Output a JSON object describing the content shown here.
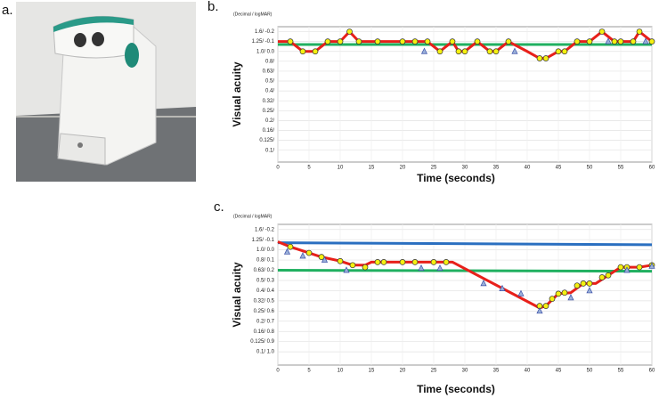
{
  "photo": {
    "label": "a."
  },
  "chart_data": [
    {
      "type": "line",
      "panel": "b.",
      "axis_note": "(Decimal / logMAR)",
      "ylabel": "Visual acuity",
      "xlabel": "Time (seconds)",
      "xlim": [
        0,
        60
      ],
      "xticks": [
        0,
        5,
        10,
        15,
        20,
        25,
        30,
        35,
        40,
        45,
        50,
        55,
        60
      ],
      "ylim": [
        1.12,
        -0.25
      ],
      "yticks": [
        {
          "value": -0.2,
          "label": "1.6/ -0.2"
        },
        {
          "value": -0.1,
          "label": "1.25/ -0.1"
        },
        {
          "value": 0.0,
          "label": "1.0/ 0.0"
        },
        {
          "value": 0.1,
          "label": "0.8/"
        },
        {
          "value": 0.2,
          "label": "0.63/"
        },
        {
          "value": 0.3,
          "label": "0.5/"
        },
        {
          "value": 0.4,
          "label": "0.4/"
        },
        {
          "value": 0.5,
          "label": "0.32/"
        },
        {
          "value": 0.6,
          "label": "0.25/"
        },
        {
          "value": 0.7,
          "label": "0.2/"
        },
        {
          "value": 0.8,
          "label": "0.16/"
        },
        {
          "value": 0.9,
          "label": "0.125/"
        },
        {
          "value": 1.0,
          "label": "0.1/"
        }
      ],
      "grid": true,
      "series": [
        {
          "color": "#20b060",
          "marker": "none",
          "x": [
            0,
            60
          ],
          "values": [
            -0.07,
            -0.07
          ]
        },
        {
          "color": "#e8201a",
          "marker": "none",
          "x": [
            0,
            2,
            4,
            6,
            8,
            10,
            11.5,
            13,
            24,
            26,
            28,
            29,
            30,
            32,
            34,
            35,
            37,
            40,
            42,
            43,
            45,
            46,
            48,
            50,
            52,
            54,
            57,
            58,
            60
          ],
          "values": [
            -0.1,
            -0.1,
            0.0,
            0.0,
            -0.1,
            -0.1,
            -0.2,
            -0.1,
            -0.1,
            0.0,
            -0.1,
            0.0,
            0.0,
            -0.1,
            0.0,
            0.0,
            -0.1,
            0.0,
            0.07,
            0.07,
            0.0,
            0.0,
            -0.1,
            -0.1,
            -0.2,
            -0.1,
            -0.1,
            -0.2,
            -0.1
          ]
        },
        {
          "color": "#f5f010",
          "marker": "circle",
          "x": [
            2,
            4,
            6,
            8,
            10,
            11.5,
            13,
            16,
            20,
            22,
            24,
            26,
            28,
            29,
            30,
            32,
            34,
            35,
            37,
            42,
            43,
            45,
            46,
            48,
            50,
            52,
            54,
            55,
            57,
            58,
            60
          ],
          "values": [
            -0.1,
            0.0,
            0.0,
            -0.1,
            -0.1,
            -0.2,
            -0.1,
            -0.1,
            -0.1,
            -0.1,
            -0.1,
            0.0,
            -0.1,
            0.0,
            0.0,
            -0.1,
            0.0,
            0.0,
            -0.1,
            0.07,
            0.07,
            0.0,
            0.0,
            -0.1,
            -0.1,
            -0.2,
            -0.1,
            -0.1,
            -0.1,
            -0.2,
            -0.1
          ]
        },
        {
          "color": "#3a4fa8",
          "marker": "triangle",
          "x": [
            23.5,
            38,
            53,
            59
          ],
          "values": [
            0.0,
            0.0,
            -0.1,
            -0.1
          ]
        }
      ]
    },
    {
      "type": "line",
      "panel": "c.",
      "axis_note": "(Decimal / logMAR)",
      "ylabel": "Visual acuity",
      "xlabel": "Time (seconds)",
      "xlim": [
        0,
        60
      ],
      "xticks": [
        0,
        5,
        10,
        15,
        20,
        25,
        30,
        35,
        40,
        45,
        50,
        55,
        60
      ],
      "ylim": [
        1.13,
        -0.25
      ],
      "yticks": [
        {
          "value": -0.2,
          "label": "1.6/ -0.2"
        },
        {
          "value": -0.1,
          "label": "1.25/ -0.1"
        },
        {
          "value": 0.0,
          "label": "1.0/ 0.0"
        },
        {
          "value": 0.1,
          "label": "0.8/ 0.1"
        },
        {
          "value": 0.2,
          "label": "0.63/ 0.2"
        },
        {
          "value": 0.3,
          "label": "0.5/ 0.3"
        },
        {
          "value": 0.4,
          "label": "0.4/ 0.4"
        },
        {
          "value": 0.5,
          "label": "0.32/ 0.5"
        },
        {
          "value": 0.6,
          "label": "0.25/ 0.6"
        },
        {
          "value": 0.7,
          "label": "0.2/ 0.7"
        },
        {
          "value": 0.8,
          "label": "0.16/ 0.8"
        },
        {
          "value": 0.9,
          "label": "0.125/ 0.9"
        },
        {
          "value": 1.0,
          "label": "0.1/ 1.0"
        }
      ],
      "grid": true,
      "series": [
        {
          "color": "#2a6fc0",
          "marker": "none",
          "x": [
            0,
            60
          ],
          "values": [
            -0.07,
            -0.05
          ]
        },
        {
          "color": "#20b060",
          "marker": "none",
          "x": [
            0,
            60
          ],
          "values": [
            0.2,
            0.21
          ]
        },
        {
          "color": "#e8201a",
          "marker": "none",
          "x": [
            0,
            2,
            5,
            7,
            10,
            12,
            14,
            15,
            20,
            27,
            28,
            42,
            43,
            45,
            47,
            49,
            51,
            53,
            55,
            58,
            60
          ],
          "values": [
            -0.08,
            -0.03,
            0.03,
            0.07,
            0.11,
            0.15,
            0.15,
            0.12,
            0.12,
            0.12,
            0.12,
            0.57,
            0.55,
            0.43,
            0.42,
            0.33,
            0.33,
            0.25,
            0.17,
            0.17,
            0.15
          ]
        },
        {
          "color": "#f5f010",
          "marker": "circle",
          "x": [
            2,
            5,
            7,
            10,
            12,
            14,
            16,
            17,
            20,
            22,
            25,
            27,
            42,
            43,
            44,
            45,
            46,
            48,
            49,
            50,
            52,
            53,
            55,
            56,
            58,
            60
          ],
          "values": [
            -0.03,
            0.03,
            0.07,
            0.11,
            0.15,
            0.17,
            0.12,
            0.12,
            0.12,
            0.12,
            0.12,
            0.12,
            0.55,
            0.55,
            0.48,
            0.43,
            0.42,
            0.35,
            0.33,
            0.33,
            0.27,
            0.25,
            0.17,
            0.17,
            0.17,
            0.15
          ]
        },
        {
          "color": "#3a4fa8",
          "marker": "triangle",
          "x": [
            1.5,
            4,
            7.5,
            11,
            23,
            26,
            33,
            36,
            39,
            42,
            47,
            50,
            56,
            60
          ],
          "values": [
            0.02,
            0.06,
            0.1,
            0.2,
            0.18,
            0.18,
            0.33,
            0.38,
            0.43,
            0.6,
            0.47,
            0.4,
            0.2,
            0.16
          ]
        }
      ]
    }
  ]
}
